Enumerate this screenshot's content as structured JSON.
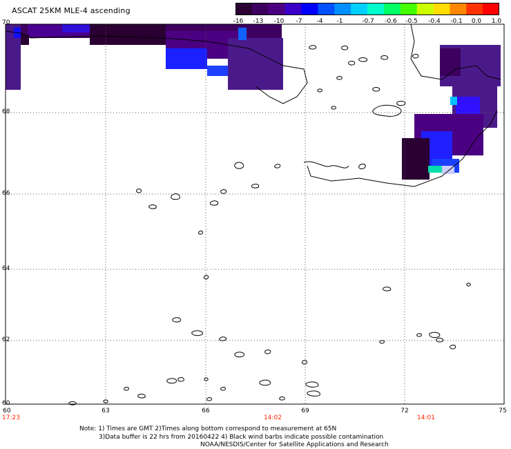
{
  "title": "ASCAT 25KM MLE-4 ascending",
  "colorbar": {
    "colors": [
      "#2a0033",
      "#3d005e",
      "#4b0082",
      "#3a00c8",
      "#0000ff",
      "#0050ff",
      "#0090ff",
      "#00d0ff",
      "#00ffcc",
      "#00ff66",
      "#44ff00",
      "#ccff00",
      "#ffdd00",
      "#ff8800",
      "#ff3300",
      "#ff0000"
    ],
    "ticks": [
      "-16",
      "-13",
      "-10",
      "-7",
      "-4",
      "-1",
      "-0.7",
      "-0.6",
      "-0.5",
      "-0.4",
      "-0.1",
      "0.0",
      "1.0"
    ]
  },
  "map": {
    "lat_labels": [
      "70",
      "68",
      "66",
      "64",
      "62",
      "60"
    ],
    "lon_labels": [
      "63",
      "66",
      "69",
      "72",
      "75"
    ],
    "corner_lon": "60",
    "lon_range": [
      60,
      75
    ],
    "lat_range": [
      60,
      70
    ]
  },
  "times": [
    "17:23",
    "14:02",
    "14:01"
  ],
  "notes": {
    "line1": "Note: 1) Times are GMT 2)Times along bottom correspond to measurement at 65N",
    "line2": "3)Data buffer is 22 hrs from 20160422 4) Black wind barbs indicate possible contamination",
    "line3": "NOAA/NESDIS/Center for Satellite Applications and Research"
  }
}
